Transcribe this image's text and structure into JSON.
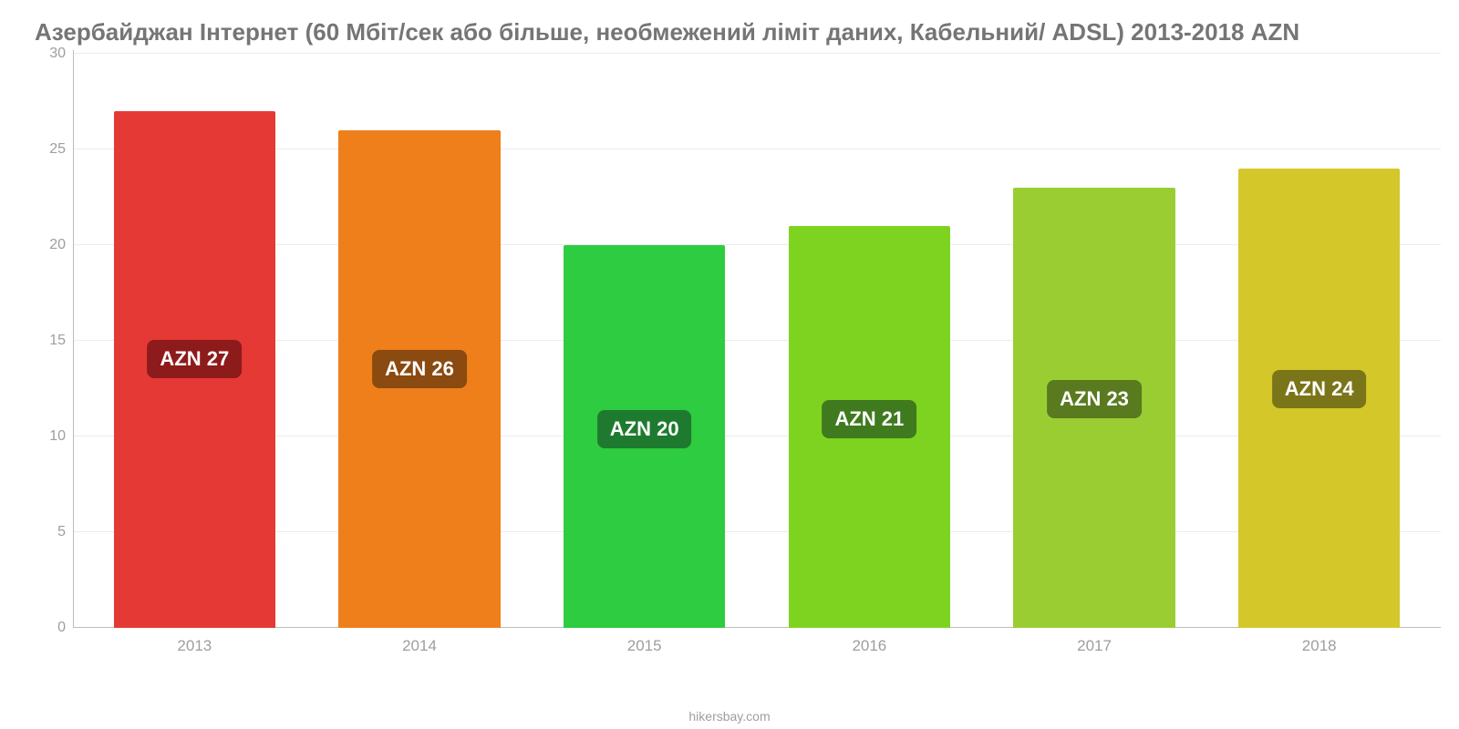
{
  "chart": {
    "type": "bar",
    "title": "Азербайджан Інтернет (60 Мбіт/сек або більше, необмежений ліміт даних, Кабельний/ ADSL) 2013-2018 AZN",
    "title_fontsize": 26,
    "title_color": "#757575",
    "background_color": "#ffffff",
    "grid_color": "#ececec",
    "axis_color": "#bdbdbd",
    "text_color": "#9e9e9e",
    "ylim": [
      0,
      30
    ],
    "ytick_step": 5,
    "yticks": [
      0,
      5,
      10,
      15,
      20,
      25,
      30
    ],
    "categories": [
      "2013",
      "2014",
      "2015",
      "2016",
      "2017",
      "2018"
    ],
    "values": [
      27,
      26,
      20,
      21,
      23,
      24
    ],
    "value_labels": [
      "AZN 27",
      "AZN 26",
      "AZN 20",
      "AZN 21",
      "AZN 23",
      "AZN 24"
    ],
    "bar_colors": [
      "#e53935",
      "#ef7f1a",
      "#2ecc40",
      "#7ed321",
      "#9acd32",
      "#d4c72a"
    ],
    "label_bg_colors": [
      "#8e1b1b",
      "#8a4a10",
      "#1e7a2e",
      "#3f7a1f",
      "#5a7a20",
      "#7a7518"
    ],
    "label_text_color": "#ffffff",
    "label_fontsize": 22,
    "bar_width": 0.72,
    "credit": "hikersbay.com"
  }
}
